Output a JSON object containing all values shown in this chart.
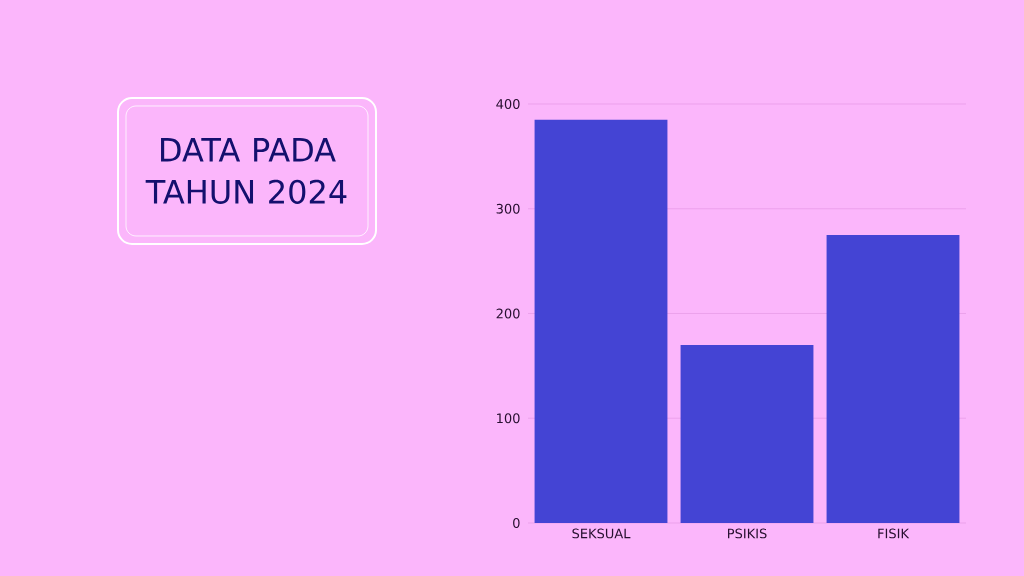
{
  "chart_data": {
    "type": "bar",
    "title": "DATA PADA TAHUN 2024",
    "categories": [
      "SEKSUAL",
      "PSIKIS",
      "FISIK"
    ],
    "values": [
      385,
      170,
      275
    ],
    "color": "#4444d4",
    "ylim": [
      0,
      400
    ],
    "yticks": [
      0,
      100,
      200,
      300,
      400
    ],
    "grid": "y"
  }
}
